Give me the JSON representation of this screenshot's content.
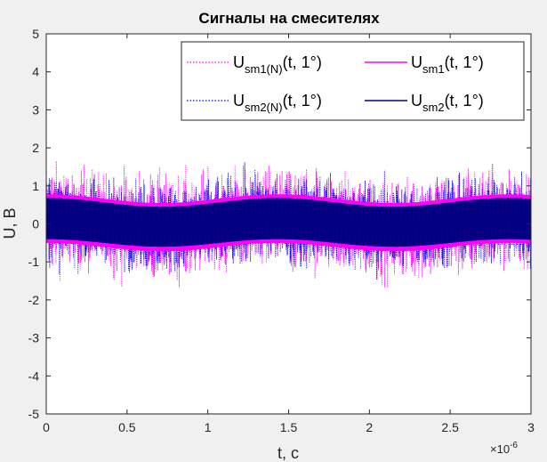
{
  "chart_data": {
    "type": "line",
    "title": "Сигналы на смесителях",
    "xlabel": "t, c",
    "ylabel": "U, B",
    "x_exponent_label": "×10",
    "x_exponent_power": "-6",
    "xlim": [
      0,
      3e-06
    ],
    "ylim": [
      -5,
      5
    ],
    "xticks": [
      0,
      5e-07,
      1e-06,
      1.5e-06,
      2e-06,
      2.5e-06,
      3e-06
    ],
    "xtick_labels": [
      "0",
      "0.5",
      "1",
      "1.5",
      "2",
      "2.5",
      "3"
    ],
    "yticks": [
      -5,
      -4,
      -3,
      -2,
      -1,
      0,
      1,
      2,
      3,
      4,
      5
    ],
    "ytick_labels": [
      "-5",
      "-4",
      "-3",
      "-2",
      "-1",
      "0",
      "1",
      "2",
      "3",
      "4",
      "5"
    ],
    "grid": false,
    "legend_position": "top-right",
    "series": [
      {
        "name": "U_sm1(N)(t, 1°)",
        "legend_main": "U",
        "legend_sub": "sm1(N)",
        "legend_tail": "(t, 1°)",
        "color": "#ff00ff",
        "style": "dotted",
        "description": "noisy signal centered on the sm1 envelope",
        "noise_sigma": 0.55
      },
      {
        "name": "U_sm2(N)(t, 1°)",
        "legend_main": "U",
        "legend_sub": "sm2(N)",
        "legend_tail": "(t, 1°)",
        "color": "#0000ff",
        "style": "dotted",
        "noise_sigma": 0.5
      },
      {
        "name": "U_sm1(t, 1°)",
        "legend_main": "U",
        "legend_sub": "sm1",
        "legend_tail": "(t, 1°)",
        "color": "#ff00ff",
        "style": "solid",
        "envelope": {
          "period": 1.43e-06,
          "phase_max_at": 0.0,
          "upper": [
            0.55,
            0.78
          ],
          "lower": [
            -0.72,
            -0.5
          ]
        }
      },
      {
        "name": "U_sm2(t, 1°)",
        "legend_main": "U",
        "legend_sub": "sm2",
        "legend_tail": "(t, 1°)",
        "color": "#000080",
        "style": "solid",
        "envelope": {
          "period": 1.43e-06,
          "phase_max_at": 0.0,
          "upper": [
            0.45,
            0.68
          ],
          "lower": [
            -0.6,
            -0.4
          ]
        }
      }
    ]
  }
}
